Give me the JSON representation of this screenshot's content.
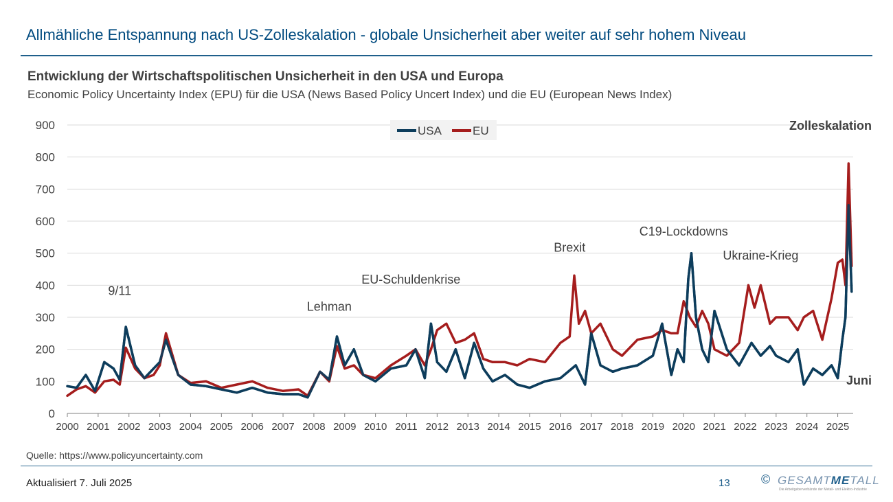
{
  "slide": {
    "title": "Allmähliche Entspannung nach US-Zolleskalation - globale Unsicherheit aber weiter auf sehr hohem Niveau",
    "source": "Quelle: https://www.policyuncertainty.com",
    "updated": "Aktualisiert 7. Juli 2025",
    "page_number": "13"
  },
  "logo": {
    "copyright": "©",
    "text_a": "GESAMT",
    "text_b": "ME",
    "text_c": "TALL",
    "tagline": "Die Arbeitgeberverbände der Metall- und Elektro-Industrie"
  },
  "colors": {
    "title": "#004a7f",
    "usa": "#0d3d5c",
    "eu": "#a51d1d",
    "grid": "#d9d9d9",
    "text": "#404040"
  },
  "chart_data": {
    "type": "line",
    "title": "Entwicklung der Wirtschaftspolitischen Unsicherheit in den USA und Europa",
    "subtitle": "Economic Policy Uncertainty Index (EPU) für die USA (News Based Policy Uncert Index) und die EU (European News Index)",
    "xlabel": "",
    "ylabel": "",
    "xlim": [
      2000,
      2025.5
    ],
    "ylim": [
      0,
      900
    ],
    "yticks": [
      "0",
      "100",
      "200",
      "300",
      "400",
      "500",
      "600",
      "700",
      "800",
      "900"
    ],
    "xticks": [
      "2000",
      "2001",
      "2002",
      "2003",
      "2004",
      "2005",
      "2006",
      "2007",
      "2008",
      "2009",
      "2010",
      "2011",
      "2012",
      "2013",
      "2014",
      "2015",
      "2016",
      "2017",
      "2018",
      "2019",
      "2020",
      "2021",
      "2022",
      "2023",
      "2024",
      "2025"
    ],
    "grid": true,
    "legend": {
      "position": "top-center",
      "entries": [
        "USA",
        "EU"
      ]
    },
    "series": [
      {
        "name": "USA",
        "color": "#0d3d5c",
        "x": [
          2000.0,
          2000.3,
          2000.6,
          2000.9,
          2001.2,
          2001.5,
          2001.7,
          2001.9,
          2002.2,
          2002.5,
          2002.8,
          2003.0,
          2003.2,
          2003.6,
          2004.0,
          2004.5,
          2005.0,
          2005.5,
          2006.0,
          2006.5,
          2007.0,
          2007.5,
          2007.8,
          2008.2,
          2008.5,
          2008.75,
          2009.0,
          2009.3,
          2009.6,
          2010.0,
          2010.5,
          2011.0,
          2011.3,
          2011.6,
          2011.8,
          2012.0,
          2012.3,
          2012.6,
          2012.9,
          2013.2,
          2013.5,
          2013.8,
          2014.2,
          2014.6,
          2015.0,
          2015.5,
          2016.0,
          2016.5,
          2016.8,
          2017.0,
          2017.3,
          2017.7,
          2018.0,
          2018.5,
          2019.0,
          2019.3,
          2019.6,
          2019.8,
          2020.0,
          2020.15,
          2020.25,
          2020.4,
          2020.6,
          2020.8,
          2021.0,
          2021.4,
          2021.8,
          2022.2,
          2022.5,
          2022.8,
          2023.0,
          2023.4,
          2023.7,
          2023.9,
          2024.2,
          2024.5,
          2024.8,
          2025.0,
          2025.15,
          2025.25,
          2025.35,
          2025.45
        ],
        "values": [
          85,
          80,
          120,
          70,
          160,
          140,
          105,
          270,
          150,
          110,
          140,
          160,
          230,
          120,
          90,
          85,
          75,
          65,
          80,
          65,
          60,
          60,
          50,
          130,
          105,
          240,
          150,
          200,
          120,
          100,
          140,
          150,
          200,
          110,
          280,
          160,
          130,
          200,
          110,
          220,
          140,
          100,
          120,
          90,
          80,
          100,
          110,
          150,
          90,
          250,
          150,
          130,
          140,
          150,
          180,
          280,
          120,
          200,
          160,
          420,
          500,
          300,
          200,
          160,
          320,
          200,
          150,
          220,
          180,
          210,
          180,
          160,
          200,
          90,
          140,
          120,
          150,
          110,
          230,
          300,
          650,
          380
        ]
      },
      {
        "name": "EU",
        "color": "#a51d1d",
        "x": [
          2000.0,
          2000.3,
          2000.6,
          2000.9,
          2001.2,
          2001.5,
          2001.7,
          2001.9,
          2002.2,
          2002.5,
          2002.8,
          2003.0,
          2003.2,
          2003.6,
          2004.0,
          2004.5,
          2005.0,
          2005.5,
          2006.0,
          2006.5,
          2007.0,
          2007.5,
          2007.8,
          2008.2,
          2008.5,
          2008.75,
          2009.0,
          2009.3,
          2009.6,
          2010.0,
          2010.5,
          2011.0,
          2011.3,
          2011.6,
          2011.8,
          2012.0,
          2012.3,
          2012.6,
          2012.9,
          2013.2,
          2013.5,
          2013.8,
          2014.2,
          2014.6,
          2015.0,
          2015.5,
          2016.0,
          2016.3,
          2016.45,
          2016.6,
          2016.8,
          2017.0,
          2017.3,
          2017.7,
          2018.0,
          2018.5,
          2019.0,
          2019.3,
          2019.6,
          2019.8,
          2020.0,
          2020.2,
          2020.4,
          2020.6,
          2020.8,
          2021.0,
          2021.4,
          2021.8,
          2022.1,
          2022.3,
          2022.5,
          2022.8,
          2023.0,
          2023.4,
          2023.7,
          2023.9,
          2024.2,
          2024.5,
          2024.8,
          2025.0,
          2025.15,
          2025.25,
          2025.35,
          2025.45
        ],
        "values": [
          55,
          75,
          85,
          65,
          100,
          105,
          90,
          205,
          140,
          110,
          120,
          150,
          250,
          120,
          95,
          100,
          80,
          90,
          100,
          80,
          70,
          75,
          55,
          130,
          100,
          210,
          140,
          150,
          120,
          110,
          150,
          180,
          200,
          150,
          200,
          260,
          280,
          220,
          230,
          250,
          170,
          160,
          160,
          150,
          170,
          160,
          220,
          240,
          430,
          280,
          320,
          250,
          280,
          200,
          180,
          230,
          240,
          260,
          250,
          250,
          350,
          300,
          270,
          320,
          280,
          200,
          180,
          220,
          400,
          330,
          400,
          280,
          300,
          300,
          260,
          300,
          320,
          230,
          360,
          470,
          480,
          400,
          780,
          460
        ]
      }
    ],
    "annotations": [
      {
        "text": "9/11",
        "x": 2001.7,
        "y": 370
      },
      {
        "text": "Lehman",
        "x": 2008.5,
        "y": 320
      },
      {
        "text": "EU-Schuldenkrise",
        "x": 2011.15,
        "y": 405
      },
      {
        "text": "Brexit",
        "x": 2016.3,
        "y": 505
      },
      {
        "text": "C19-Lockdowns",
        "x": 2020.0,
        "y": 555
      },
      {
        "text": "Ukraine-Krieg",
        "x": 2022.5,
        "y": 480
      },
      {
        "text": "Zolleskalation",
        "x": 2025.4,
        "y": 885,
        "bold": true
      },
      {
        "text": "Juni",
        "x": 2025.4,
        "y": 90,
        "bold": true
      }
    ]
  }
}
